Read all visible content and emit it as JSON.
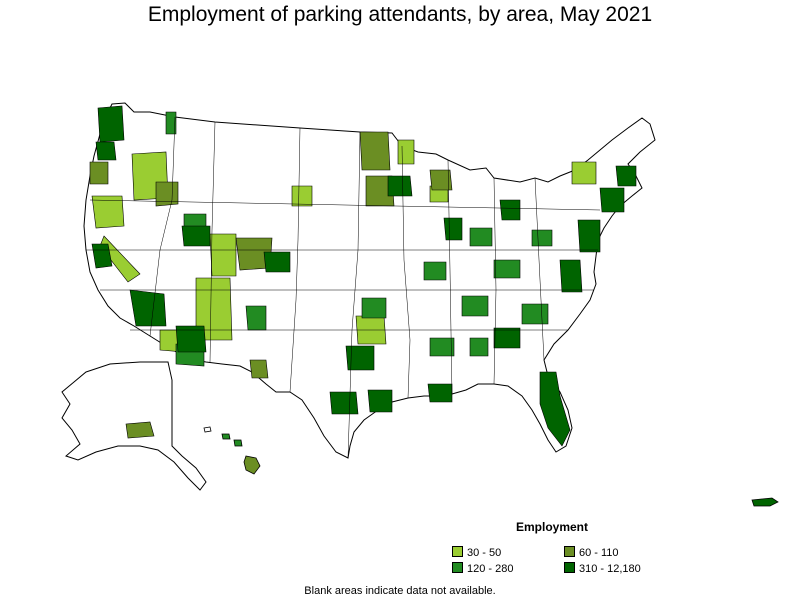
{
  "title": "Employment of parking attendants, by area, May 2021",
  "legend": {
    "title": "Employment",
    "items": [
      {
        "label": "30 - 50",
        "color": "#9acd32"
      },
      {
        "label": "60 - 110",
        "color": "#6b8e23"
      },
      {
        "label": "120 - 280",
        "color": "#228b22"
      },
      {
        "label": "310 - 12,180",
        "color": "#006400"
      }
    ]
  },
  "note": "Blank areas indicate data not available.",
  "colors": {
    "background": "#ffffff",
    "blank_area": "#ffffff",
    "border": "#000000"
  }
}
